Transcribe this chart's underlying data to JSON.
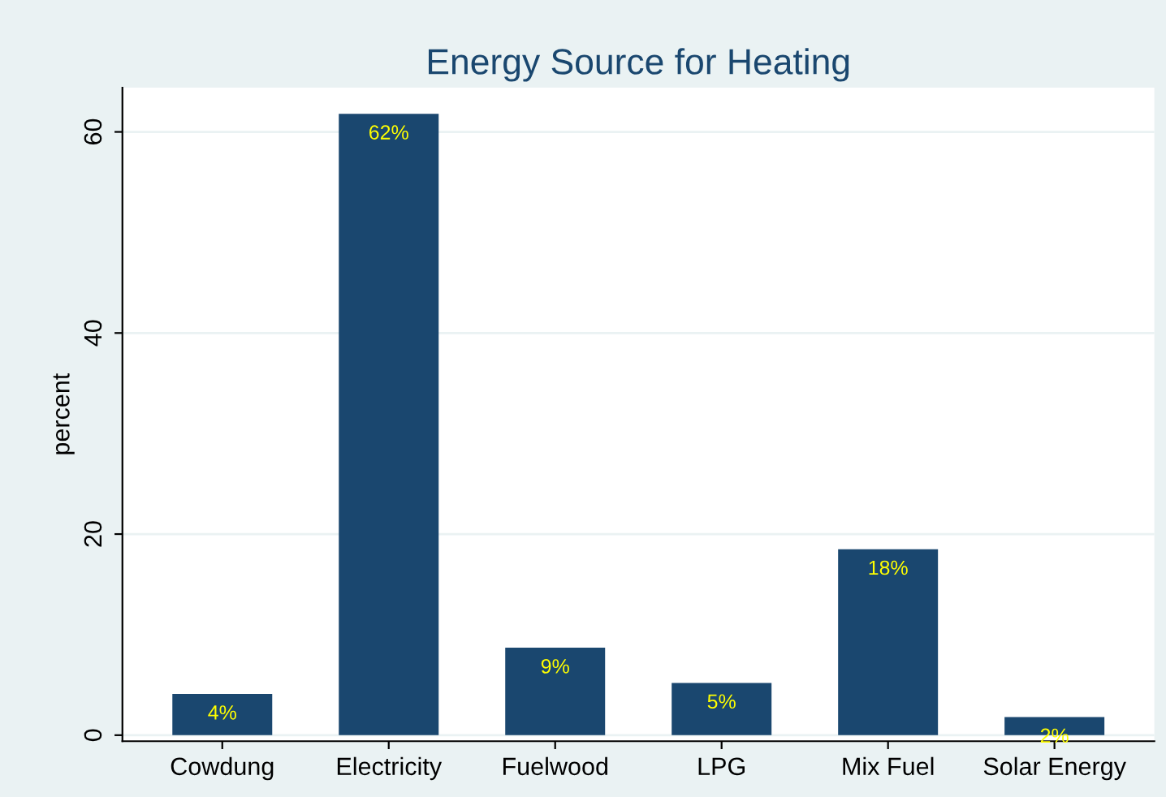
{
  "chart_data": {
    "type": "bar",
    "title": "Energy Source for Heating",
    "ylabel": "percent",
    "categories": [
      "Cowdung",
      "Electricity",
      "Fuelwood",
      "LPG",
      "Mix Fuel",
      "Solar Energy"
    ],
    "values": [
      4.1,
      61.8,
      8.7,
      5.2,
      18.5,
      1.8
    ],
    "value_labels": [
      "4%",
      "62%",
      "9%",
      "5%",
      "18%",
      "2%"
    ],
    "color": "#1a476f",
    "ylim": [
      -0.6,
      64.4
    ],
    "yticks": [
      0,
      20,
      40,
      60
    ],
    "grid": "y",
    "legend": false
  }
}
